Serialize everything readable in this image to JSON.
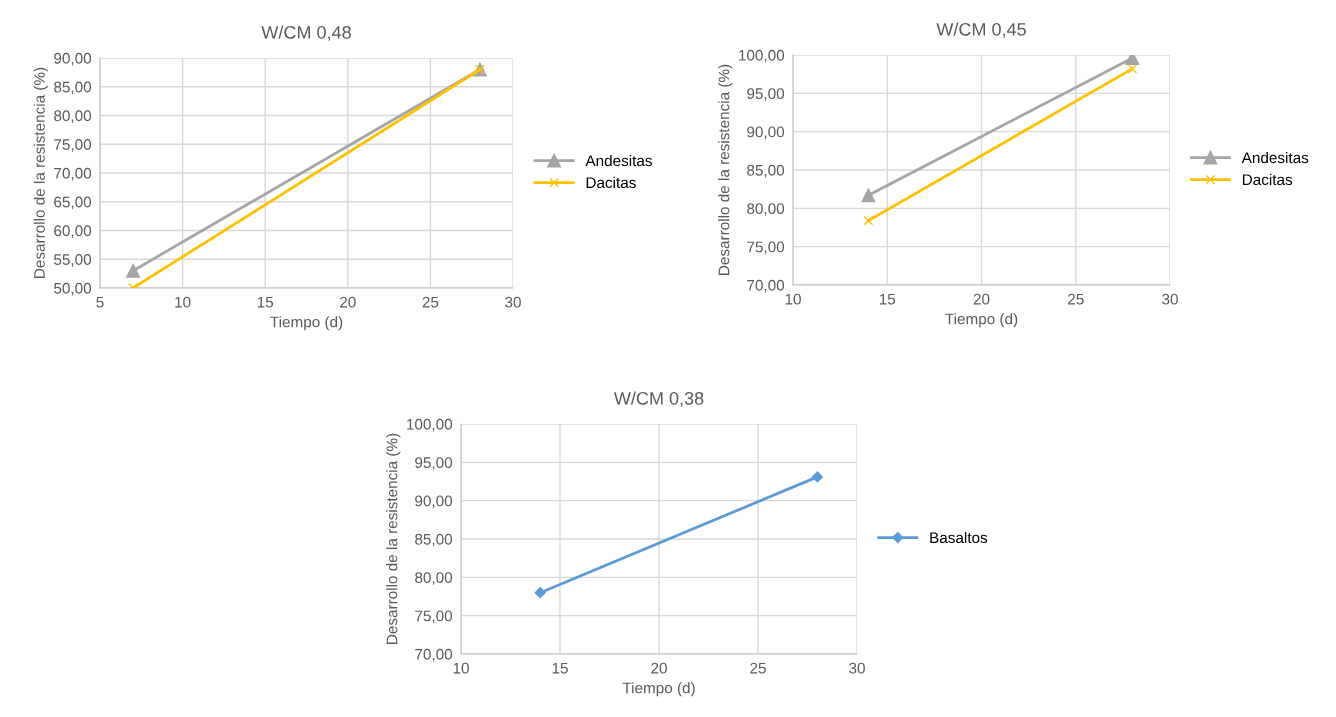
{
  "chart_data": [
    {
      "type": "line",
      "title": "W/CM 0,48",
      "xlabel": "Tiempo (d)",
      "ylabel": "Desarrollo de la resistencia (%)",
      "series": [
        {
          "name": "Andesitas",
          "color": "#a5a5a5",
          "marker": "triangle",
          "x": [
            7,
            28
          ],
          "values": [
            53,
            88
          ]
        },
        {
          "name": "Dacitas",
          "color": "#ffc000",
          "marker": "cross",
          "x": [
            7,
            28
          ],
          "values": [
            50,
            88
          ]
        }
      ],
      "xlim": [
        5,
        30
      ],
      "xticks": [
        5,
        10,
        15,
        20,
        25,
        30
      ],
      "ylim": [
        50,
        90
      ],
      "yticks": [
        {
          "value": 50,
          "label": "50,00"
        },
        {
          "value": 55,
          "label": "55,00"
        },
        {
          "value": 60,
          "label": "60,00"
        },
        {
          "value": 65,
          "label": "65,00"
        },
        {
          "value": 70,
          "label": "70,00"
        },
        {
          "value": 75,
          "label": "75,00"
        },
        {
          "value": 80,
          "label": "80,00"
        },
        {
          "value": 85,
          "label": "85,00"
        },
        {
          "value": 90,
          "label": "90,00"
        }
      ],
      "grid": true,
      "legend": "right"
    },
    {
      "type": "line",
      "title": "W/CM 0,45",
      "xlabel": "Tiempo (d)",
      "ylabel": "Desarrollo de la resistencia (%)",
      "series": [
        {
          "name": "Andesitas",
          "color": "#a5a5a5",
          "marker": "triangle",
          "x": [
            14,
            28
          ],
          "values": [
            81.7,
            99.6
          ]
        },
        {
          "name": "Dacitas",
          "color": "#ffc000",
          "marker": "cross",
          "x": [
            14,
            28
          ],
          "values": [
            78.4,
            98.2
          ]
        }
      ],
      "xlim": [
        10,
        30
      ],
      "xticks": [
        10,
        15,
        20,
        25,
        30
      ],
      "ylim": [
        70,
        100
      ],
      "yticks": [
        {
          "value": 70,
          "label": "70,00"
        },
        {
          "value": 75,
          "label": "75,00"
        },
        {
          "value": 80,
          "label": "80,00"
        },
        {
          "value": 85,
          "label": "85,00"
        },
        {
          "value": 90,
          "label": "90,00"
        },
        {
          "value": 95,
          "label": "95,00"
        },
        {
          "value": 100,
          "label": "100,00"
        }
      ],
      "grid": true,
      "legend": "right"
    },
    {
      "type": "line",
      "title": "W/CM 0,38",
      "xlabel": "Tiempo (d)",
      "ylabel": "Desarrollo de la resistencia (%)",
      "series": [
        {
          "name": "Basaltos",
          "color": "#5b9bd5",
          "marker": "diamond",
          "x": [
            14,
            28
          ],
          "values": [
            78.0,
            93.1
          ]
        }
      ],
      "xlim": [
        10,
        30
      ],
      "xticks": [
        10,
        15,
        20,
        25,
        30
      ],
      "ylim": [
        70,
        100
      ],
      "yticks": [
        {
          "value": 70,
          "label": "70,00"
        },
        {
          "value": 75,
          "label": "75,00"
        },
        {
          "value": 80,
          "label": "80,00"
        },
        {
          "value": 85,
          "label": "85,00"
        },
        {
          "value": 90,
          "label": "90,00"
        },
        {
          "value": 95,
          "label": "95,00"
        },
        {
          "value": 100,
          "label": "100,00"
        }
      ],
      "grid": true,
      "legend": "right"
    }
  ]
}
